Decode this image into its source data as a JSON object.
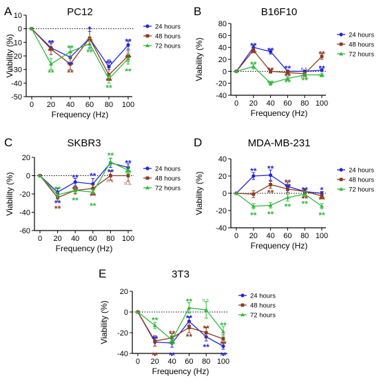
{
  "colors": {
    "24 hours": "#2424d6",
    "48 hours": "#8b3a1f",
    "72 hours": "#2fb83a",
    "axis": "#000000"
  },
  "chart_data": [
    {
      "id": "A",
      "letter": "A",
      "type": "line",
      "title": "PC12",
      "xlabel": "Frequency (Hz)",
      "ylabel": "Viability (%)",
      "x": [
        0,
        20,
        40,
        60,
        80,
        100
      ],
      "xticks": [
        "0",
        "20",
        "40",
        "60",
        "80",
        "100"
      ],
      "ylim": [
        -50,
        10
      ],
      "yticks": [
        10,
        0,
        -10,
        -20,
        -30,
        -40,
        -50
      ],
      "reference_line": 0,
      "legend": "right",
      "series": [
        {
          "name": "24 hours",
          "values": [
            0,
            -14,
            -21,
            -7,
            -28,
            -12
          ],
          "err": [
            0,
            5,
            4,
            7,
            5,
            3
          ]
        },
        {
          "name": "48 hours",
          "values": [
            0,
            -15,
            -26,
            -7,
            -34,
            -20
          ],
          "err": [
            0,
            4,
            4,
            5,
            4,
            4
          ]
        },
        {
          "name": "72 hours",
          "values": [
            0,
            -26,
            -17,
            -11,
            -37,
            -22
          ],
          "err": [
            0,
            4,
            4,
            4,
            3,
            4
          ]
        }
      ],
      "annotations": [
        {
          "text": "**",
          "series": "24 hours",
          "x": 20,
          "y": -9
        },
        {
          "text": "**",
          "series": "48 hours",
          "x": 20,
          "y": -15
        },
        {
          "text": "**",
          "series": "72 hours",
          "x": 20,
          "y": -31
        },
        {
          "text": "**",
          "series": "72 hours",
          "x": 40,
          "y": -13
        },
        {
          "text": "**",
          "series": "24 hours",
          "x": 40,
          "y": -25
        },
        {
          "text": "**",
          "series": "48 hours",
          "x": 40,
          "y": -31
        },
        {
          "text": "*",
          "series": "24 hours",
          "x": 60,
          "y": 1
        },
        {
          "text": "**",
          "series": "48 hours",
          "x": 60,
          "y": -8
        },
        {
          "text": "**",
          "series": "72 hours",
          "x": 60,
          "y": -16
        },
        {
          "text": "**",
          "series": "24 hours",
          "x": 80,
          "y": -24
        },
        {
          "text": "**",
          "series": "48 hours",
          "x": 80,
          "y": -37
        },
        {
          "text": "**",
          "series": "72 hours",
          "x": 80,
          "y": -42
        },
        {
          "text": "**",
          "series": "24 hours",
          "x": 100,
          "y": -8
        },
        {
          "text": "**",
          "series": "48 hours",
          "x": 100,
          "y": -20
        },
        {
          "text": "**",
          "series": "72 hours",
          "x": 100,
          "y": -30
        }
      ]
    },
    {
      "id": "B",
      "letter": "B",
      "type": "line",
      "title": "B16F10",
      "xlabel": "Frequency (Hz)",
      "ylabel": "Viability (%)",
      "x": [
        0,
        20,
        40,
        60,
        80,
        100
      ],
      "xticks": [
        "0",
        "20",
        "40",
        "60",
        "80",
        "100"
      ],
      "ylim": [
        -40,
        80
      ],
      "yticks": [
        80,
        60,
        40,
        20,
        0,
        -20,
        -40
      ],
      "reference_line": 0,
      "legend": "right",
      "series": [
        {
          "name": "24 hours",
          "values": [
            0,
            40,
            33,
            0,
            0,
            2
          ],
          "err": [
            0,
            4,
            4,
            2,
            2,
            2
          ]
        },
        {
          "name": "48 hours",
          "values": [
            0,
            35,
            0,
            -2,
            -4,
            25
          ],
          "err": [
            0,
            4,
            3,
            3,
            3,
            5
          ]
        },
        {
          "name": "72 hours",
          "values": [
            0,
            8,
            -20,
            -12,
            -6,
            -6
          ],
          "err": [
            0,
            4,
            3,
            3,
            3,
            3
          ]
        }
      ],
      "annotations": [
        {
          "text": "**",
          "series": "24 hours",
          "x": 20,
          "y": 46
        },
        {
          "text": "**",
          "series": "48 hours",
          "x": 20,
          "y": 33
        },
        {
          "text": "**",
          "series": "72 hours",
          "x": 20,
          "y": 15
        },
        {
          "text": "**",
          "series": "24 hours",
          "x": 40,
          "y": 38
        },
        {
          "text": "**",
          "series": "48 hours",
          "x": 40,
          "y": 5
        },
        {
          "text": "**",
          "series": "72 hours",
          "x": 40,
          "y": -17
        },
        {
          "text": "**",
          "series": "24 hours",
          "x": 60,
          "y": 8
        },
        {
          "text": "**",
          "series": "48 hours",
          "x": 60,
          "y": -5
        },
        {
          "text": "**",
          "series": "72 hours",
          "x": 60,
          "y": -15
        },
        {
          "text": "n.s.",
          "series": "24 hours",
          "x": 80,
          "y": 5
        },
        {
          "text": "n.s.",
          "series": "48 hours",
          "x": 80,
          "y": -8
        },
        {
          "text": "**",
          "series": "72 hours",
          "x": 80,
          "y": -12
        },
        {
          "text": "**",
          "series": "48 hours",
          "x": 100,
          "y": 32
        },
        {
          "text": "**",
          "series": "24 hours",
          "x": 100,
          "y": 8
        },
        {
          "text": "n.s.",
          "series": "72 hours",
          "x": 100,
          "y": -6
        }
      ]
    },
    {
      "id": "C",
      "letter": "C",
      "type": "line",
      "title": "SKBR3",
      "xlabel": "Frequency (Hz)",
      "ylabel": "Viability (%)",
      "x": [
        0,
        20,
        40,
        60,
        80,
        100
      ],
      "xticks": [
        "0",
        "20",
        "40",
        "60",
        "80",
        "100"
      ],
      "ylim": [
        -60,
        20
      ],
      "yticks": [
        20,
        0,
        -20,
        -40,
        -60
      ],
      "reference_line": 0,
      "legend": "right",
      "series": [
        {
          "name": "24 hours",
          "values": [
            0,
            -18,
            -7,
            -9,
            14,
            9
          ],
          "err": [
            0,
            4,
            4,
            6,
            5,
            4
          ]
        },
        {
          "name": "48 hours",
          "values": [
            0,
            -24,
            -16,
            -14,
            0,
            0
          ],
          "err": [
            0,
            4,
            4,
            4,
            5,
            6
          ]
        },
        {
          "name": "72 hours",
          "values": [
            0,
            -21,
            -16,
            -18,
            15,
            6
          ],
          "err": [
            0,
            3,
            3,
            3,
            4,
            4
          ]
        }
      ],
      "annotations": [
        {
          "text": "**",
          "series": "72 hours",
          "x": 20,
          "y": -13
        },
        {
          "text": "**",
          "series": "48 hours",
          "x": 20,
          "y": -34
        },
        {
          "text": "**",
          "series": "24 hours",
          "x": 20,
          "y": -28
        },
        {
          "text": "**",
          "series": "24 hours",
          "x": 40,
          "y": 0
        },
        {
          "text": "**",
          "series": "48 hours",
          "x": 40,
          "y": -13
        },
        {
          "text": "**",
          "series": "72 hours",
          "x": 40,
          "y": -25
        },
        {
          "text": "**",
          "series": "24 hours",
          "x": 60,
          "y": 2
        },
        {
          "text": "**",
          "series": "48 hours",
          "x": 60,
          "y": -20
        },
        {
          "text": "**",
          "series": "72 hours",
          "x": 60,
          "y": -31
        },
        {
          "text": "**",
          "series": "72 hours",
          "x": 80,
          "y": 24
        },
        {
          "text": "n.s.",
          "series": "48 hours",
          "x": 80,
          "y": -5
        },
        {
          "text": "**",
          "series": "24 hours",
          "x": 80,
          "y": 6
        },
        {
          "text": "**",
          "series": "24 hours",
          "x": 100,
          "y": 16
        },
        {
          "text": "**",
          "series": "72 hours",
          "x": 100,
          "y": 5
        },
        {
          "text": "n.s.",
          "series": "48 hours",
          "x": 100,
          "y": -8
        }
      ]
    },
    {
      "id": "D",
      "letter": "D",
      "type": "line",
      "title": "MDA-MB-231",
      "xlabel": "Frequency (Hz)",
      "ylabel": "Viability (%)",
      "x": [
        0,
        20,
        40,
        60,
        80,
        100
      ],
      "xticks": [
        "0",
        "20",
        "40",
        "60",
        "80",
        "100"
      ],
      "ylim": [
        -40,
        40
      ],
      "yticks": [
        40,
        20,
        0,
        -20,
        -40
      ],
      "reference_line": 0,
      "legend": "right",
      "series": [
        {
          "name": "24 hours",
          "values": [
            0,
            20,
            21,
            8,
            2,
            0
          ],
          "err": [
            0,
            4,
            6,
            5,
            3,
            2
          ]
        },
        {
          "name": "48 hours",
          "values": [
            0,
            -1,
            10,
            5,
            2,
            -3
          ],
          "err": [
            0,
            4,
            4,
            4,
            3,
            3
          ]
        },
        {
          "name": "72 hours",
          "values": [
            0,
            -15,
            -14,
            -5,
            -1,
            -15
          ],
          "err": [
            0,
            3,
            3,
            4,
            3,
            3
          ]
        }
      ],
      "annotations": [
        {
          "text": "**",
          "series": "24 hours",
          "x": 20,
          "y": 28
        },
        {
          "text": "**",
          "series": "72 hours",
          "x": 20,
          "y": -23
        },
        {
          "text": "**",
          "series": "24 hours",
          "x": 40,
          "y": 31
        },
        {
          "text": "**",
          "series": "48 hours",
          "x": 40,
          "y": 3
        },
        {
          "text": "**",
          "series": "72 hours",
          "x": 40,
          "y": -22
        },
        {
          "text": "**",
          "series": "48 hours",
          "x": 60,
          "y": 15
        },
        {
          "text": "**",
          "series": "24 hours",
          "x": 60,
          "y": 10
        },
        {
          "text": "**",
          "series": "72 hours",
          "x": 60,
          "y": -13
        },
        {
          "text": "**",
          "series": "24 hours",
          "x": 80,
          "y": 6
        },
        {
          "text": "**",
          "series": "48 hours",
          "x": 80,
          "y": -4
        },
        {
          "text": "**",
          "series": "72 hours",
          "x": 80,
          "y": -10
        },
        {
          "text": "*",
          "series": "24 hours",
          "x": 100,
          "y": 6
        },
        {
          "text": "**",
          "series": "48 hours",
          "x": 100,
          "y": -5
        },
        {
          "text": "**",
          "series": "72 hours",
          "x": 100,
          "y": -23
        }
      ]
    },
    {
      "id": "E",
      "letter": "E",
      "type": "line",
      "title": "3T3",
      "xlabel": "Frequency (Hz)",
      "ylabel": "Viability (%)",
      "x": [
        0,
        20,
        40,
        60,
        80,
        100
      ],
      "xticks": [
        "0",
        "20",
        "40",
        "60",
        "80",
        "100"
      ],
      "ylim": [
        -40,
        20
      ],
      "yticks": [
        20,
        0,
        -20,
        -40
      ],
      "reference_line": 0,
      "legend": "right",
      "series": [
        {
          "name": "24 hours",
          "values": [
            0,
            -29,
            -30,
            -9,
            -24,
            -33
          ],
          "err": [
            0,
            4,
            4,
            4,
            4,
            3
          ]
        },
        {
          "name": "48 hours",
          "values": [
            0,
            -28,
            -25,
            -15,
            -20,
            -26
          ],
          "err": [
            0,
            5,
            4,
            5,
            5,
            4
          ]
        },
        {
          "name": "72 hours",
          "values": [
            0,
            -13,
            -27,
            4,
            2,
            -19
          ],
          "err": [
            0,
            3,
            4,
            5,
            8,
            5
          ]
        }
      ],
      "annotations": [
        {
          "text": "**",
          "series": "72 hours",
          "x": 20,
          "y": -6
        },
        {
          "text": "**",
          "series": "24 hours",
          "x": 20,
          "y": -24
        },
        {
          "text": "**",
          "series": "48 hours",
          "x": 20,
          "y": -40
        },
        {
          "text": "**",
          "series": "48 hours",
          "x": 40,
          "y": -19
        },
        {
          "text": "**",
          "series": "72 hours",
          "x": 40,
          "y": -29
        },
        {
          "text": "**",
          "series": "24 hours",
          "x": 40,
          "y": -40
        },
        {
          "text": "**",
          "series": "72 hours",
          "x": 60,
          "y": 12
        },
        {
          "text": "**",
          "series": "24 hours",
          "x": 60,
          "y": -4
        },
        {
          "text": "**",
          "series": "48 hours",
          "x": 60,
          "y": -22
        },
        {
          "text": "n.s.",
          "series": "72 hours",
          "x": 80,
          "y": 12
        },
        {
          "text": "**",
          "series": "48 hours",
          "x": 80,
          "y": -14
        },
        {
          "text": "**",
          "series": "24 hours",
          "x": 80,
          "y": -32
        },
        {
          "text": "**",
          "series": "72 hours",
          "x": 100,
          "y": -11
        },
        {
          "text": "**",
          "series": "48 hours",
          "x": 100,
          "y": -29
        },
        {
          "text": "**",
          "series": "24 hours",
          "x": 100,
          "y": -40
        }
      ]
    }
  ]
}
